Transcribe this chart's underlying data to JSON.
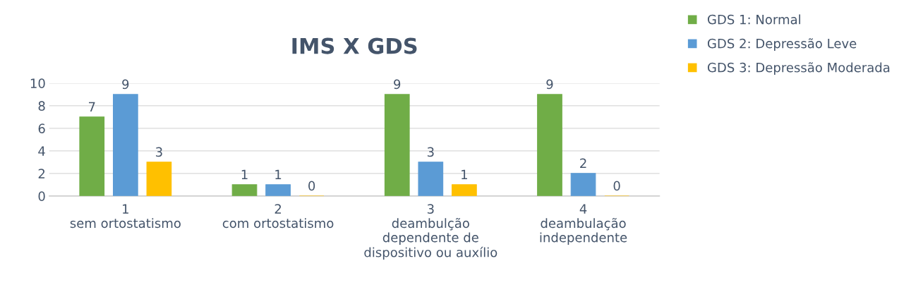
{
  "chart_data": {
    "type": "bar",
    "title": "IMS X GDS",
    "categories": [
      "1\nsem ortostatismo",
      "2\ncom ortostatismo",
      "3\ndeambulção\ndependente de\ndispositivo ou auxílio",
      "4\ndeambulação\nindependente"
    ],
    "series": [
      {
        "name": "GDS 1: Normal",
        "color": "#70ad47",
        "values": [
          7,
          1,
          9,
          9
        ]
      },
      {
        "name": "GDS 2: Depressão Leve",
        "color": "#5b9bd5",
        "values": [
          9,
          1,
          3,
          2
        ]
      },
      {
        "name": "GDS 3: Depressão Moderada",
        "color": "#ffc000",
        "values": [
          3,
          0,
          1,
          0
        ]
      }
    ],
    "ylim": [
      0,
      10
    ],
    "yticks": [
      0,
      2,
      4,
      6,
      8,
      10
    ],
    "grid": "y",
    "legend": "top right",
    "data_labels": true
  }
}
